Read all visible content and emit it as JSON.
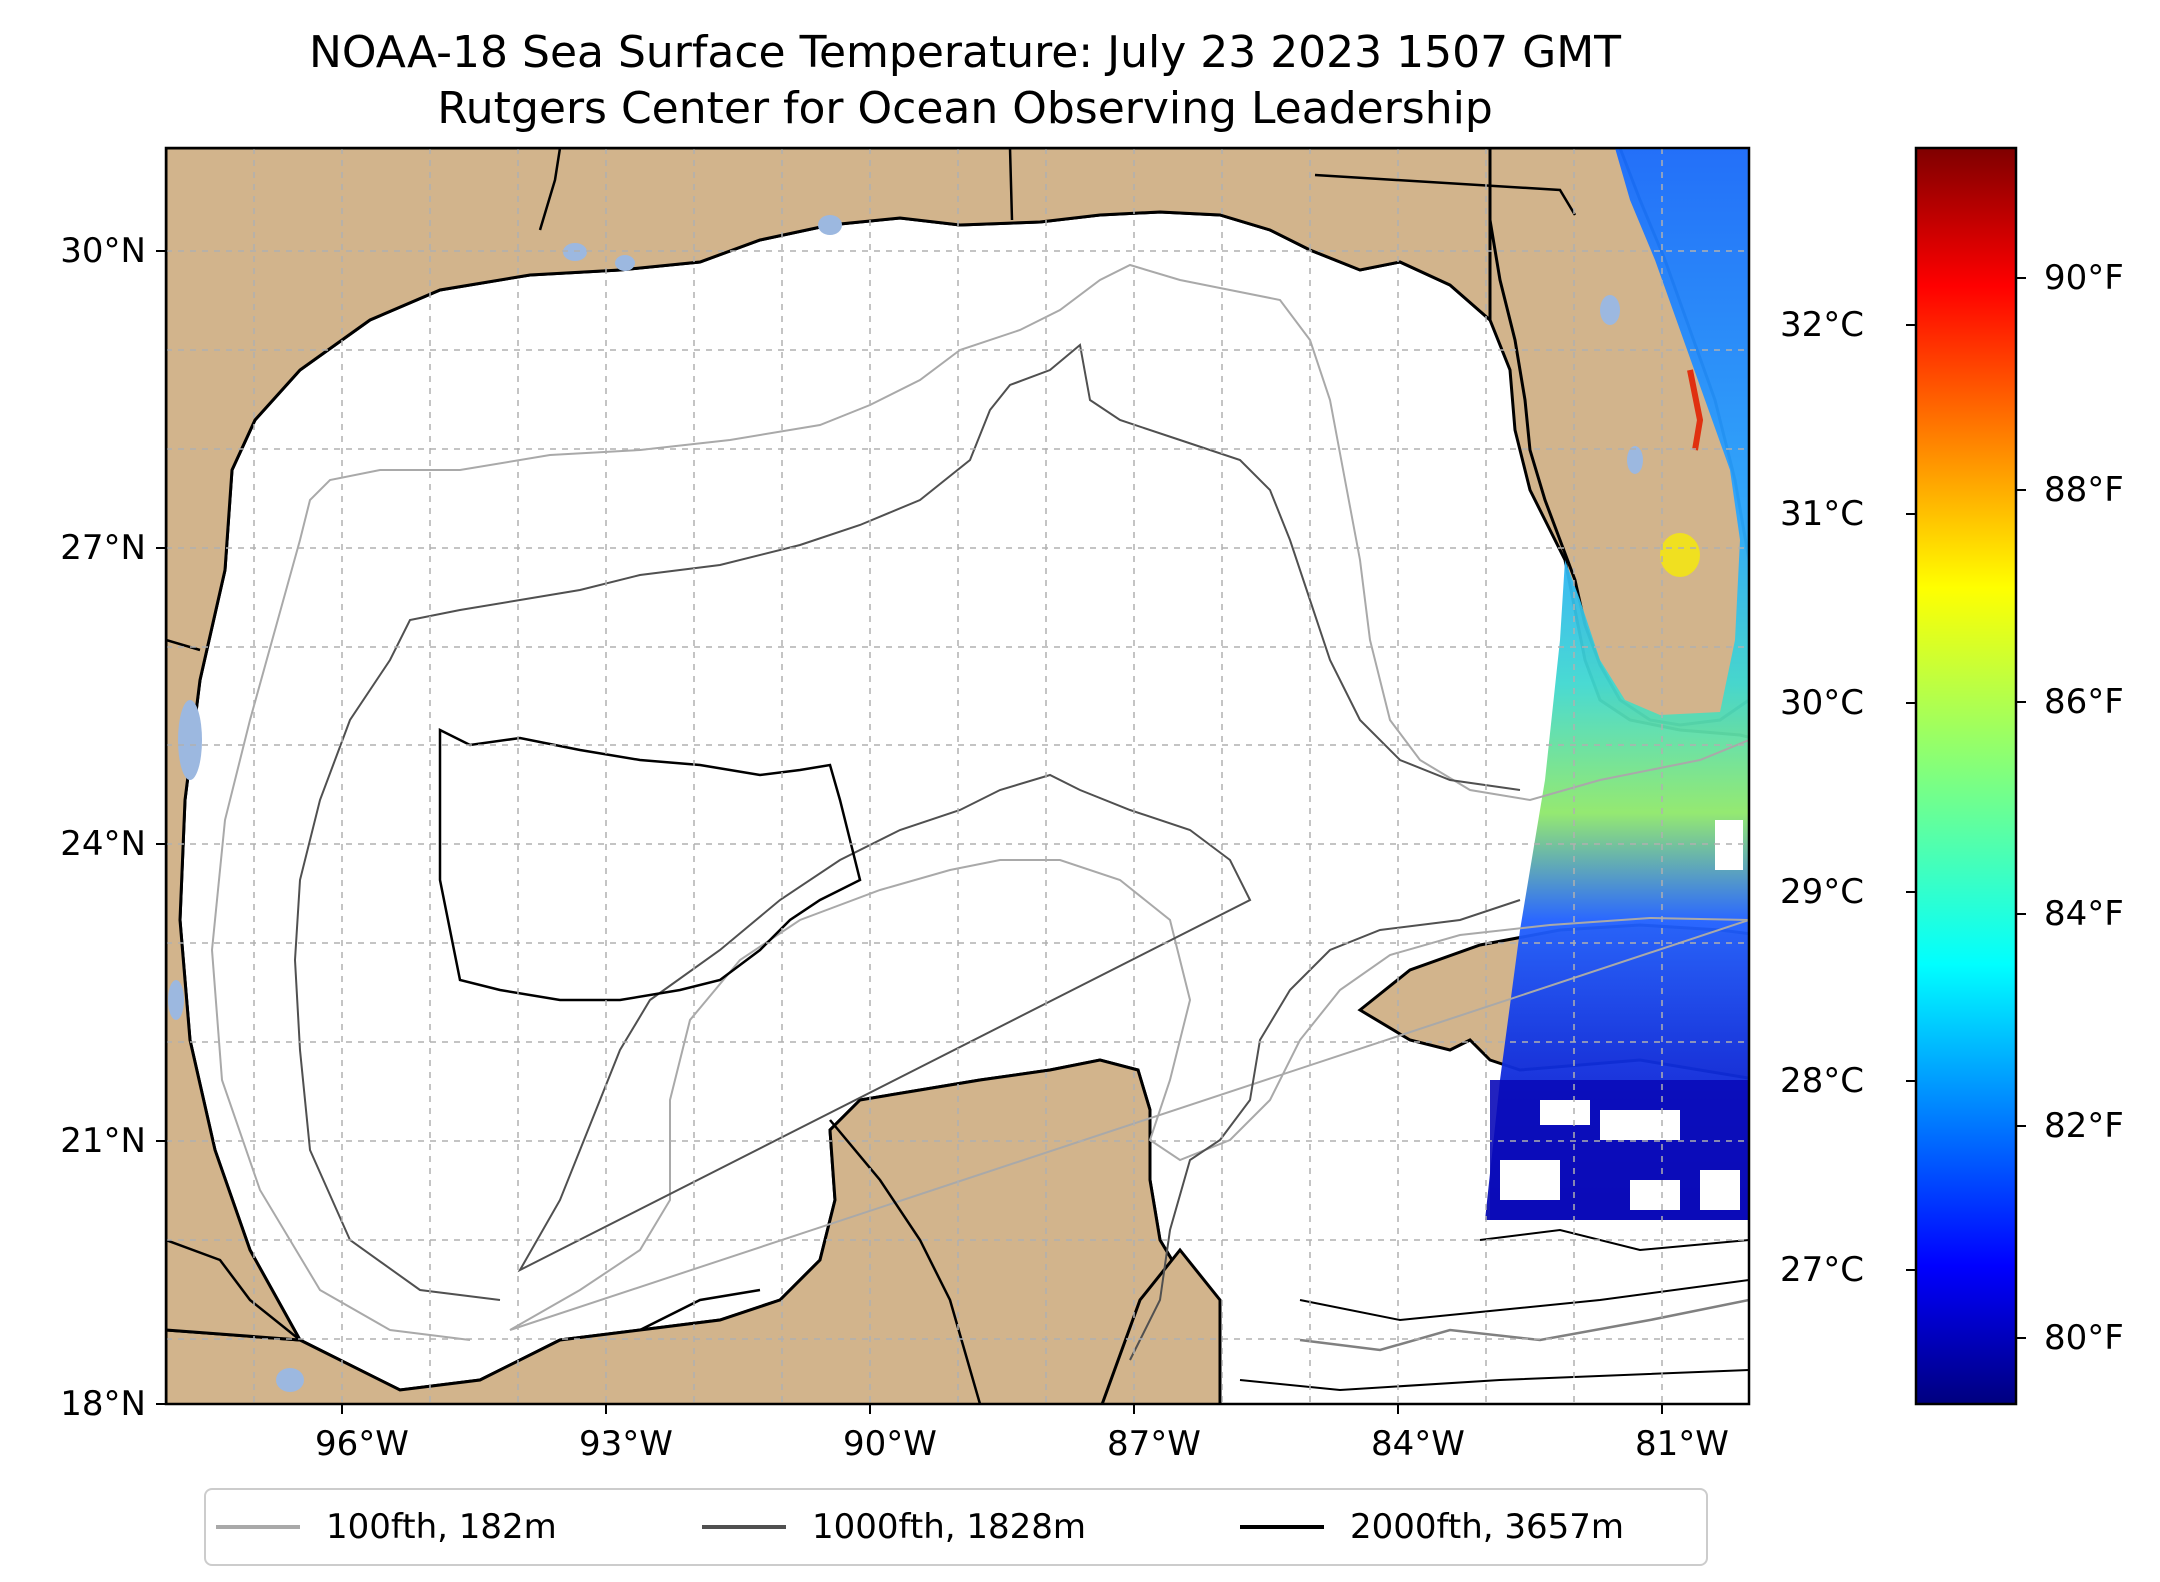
{
  "title": {
    "line1": "NOAA-18 Sea Surface Temperature: July 23 2023 1507 GMT",
    "line2": "Rutgers Center for Ocean Observing Leadership"
  },
  "map": {
    "region": "Gulf of Mexico",
    "extent": {
      "lon": [
        -98.3,
        -80.3
      ],
      "lat": [
        18,
        30.9
      ]
    },
    "colors": {
      "land": "#d2b48c",
      "ocean": "#ffffff",
      "lakes": "#9cb8e0",
      "grid": "#b0b0b0"
    },
    "lat_ticks": [
      "30°N",
      "27°N",
      "24°N",
      "21°N",
      "18°N"
    ],
    "lon_ticks": [
      "96°W",
      "93°W",
      "90°W",
      "87°W",
      "84°W",
      "81°W"
    ]
  },
  "colorbar": {
    "colormap": "jet",
    "celsius_labels": [
      "32°C",
      "31°C",
      "30°C",
      "29°C",
      "28°C",
      "27°C"
    ],
    "fahrenheit_labels": [
      "90°F",
      "88°F",
      "86°F",
      "84°F",
      "82°F",
      "80°F"
    ],
    "range_c": [
      26.3,
      32.9
    ]
  },
  "legend": {
    "items": [
      {
        "label": "100fth, 182m",
        "color": "#a9a9a9"
      },
      {
        "label": "1000fth, 1828m",
        "color": "#505050"
      },
      {
        "label": "2000fth, 3657m",
        "color": "#000000"
      }
    ]
  }
}
